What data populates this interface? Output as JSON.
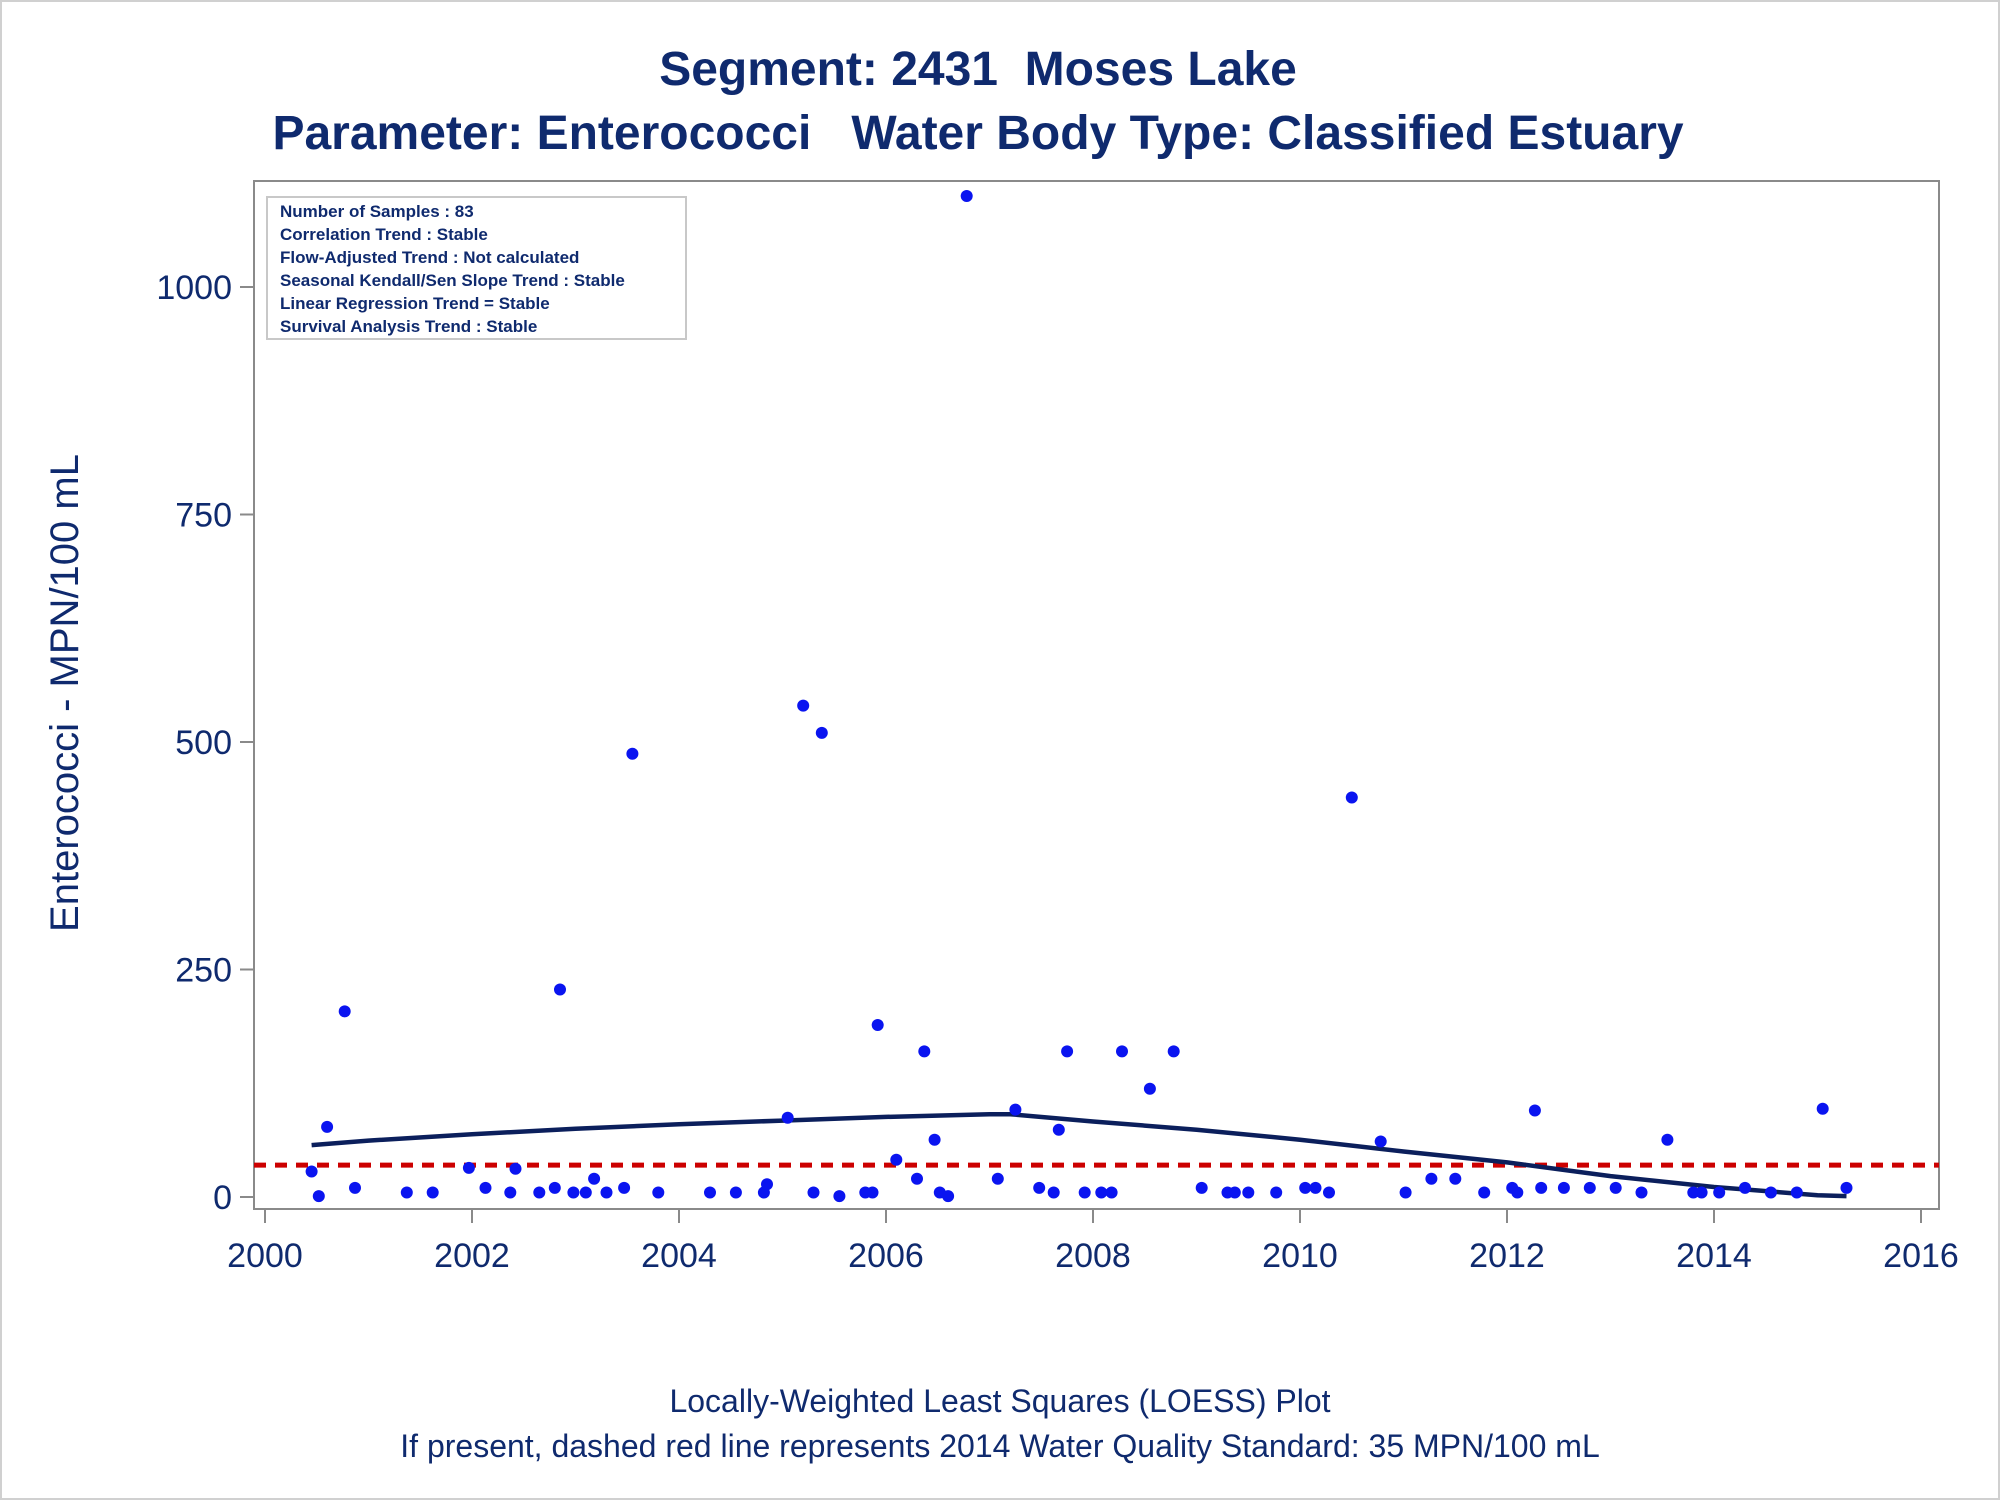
{
  "title": "Segment: 2431  Moses Lake",
  "subtitle": "Parameter: Enterococci   Water Body Type: Classified Estuary",
  "footer": {
    "line1": "Locally-Weighted Least Squares (LOESS) Plot",
    "line2": "If present, dashed red line represents 2014 Water Quality Standard: 35 MPN/100 mL"
  },
  "annotations": [
    "Number of Samples : 83",
    "Correlation Trend : Stable",
    "Flow-Adjusted Trend : Not calculated",
    "Seasonal Kendall/Sen Slope Trend : Stable",
    "Linear Regression Trend = Stable",
    "Survival Analysis Trend : Stable"
  ],
  "colors": {
    "text": "#0f2a6e",
    "points": "#0a14f0",
    "loess": "#0b1f5c",
    "standard": "#cc0000",
    "axis": "#8a8a8a"
  },
  "chart_data": {
    "type": "scatter",
    "title": "Segment: 2431  Moses Lake",
    "subtitle": "Parameter: Enterococci   Water Body Type: Classified Estuary",
    "xlabel": "",
    "ylabel": "Enterococci - MPN/100 mL",
    "xlim": [
      2000,
      2016
    ],
    "ylim": [
      -13,
      1110
    ],
    "xticks": [
      2000,
      2002,
      2004,
      2006,
      2008,
      2010,
      2012,
      2014,
      2016
    ],
    "yticks": [
      0,
      250,
      500,
      750,
      1000
    ],
    "standard_line": {
      "y": 35,
      "style": "dashed",
      "color": "#cc0000"
    },
    "series": [
      {
        "type": "scatter",
        "x": [
          2000.45,
          2000.52,
          2000.6,
          2000.77,
          2000.87,
          2001.37,
          2001.62,
          2001.97,
          2002.13,
          2002.37,
          2002.42,
          2002.65,
          2002.8,
          2002.85,
          2002.98,
          2003.1,
          2003.18,
          2003.3,
          2003.47,
          2003.55,
          2003.8,
          2004.3,
          2004.55,
          2004.82,
          2004.85,
          2005.05,
          2005.2,
          2005.3,
          2005.38,
          2005.55,
          2005.8,
          2005.87,
          2005.92,
          2006.1,
          2006.3,
          2006.37,
          2006.47,
          2006.52,
          2006.6,
          2006.78,
          2007.08,
          2007.25,
          2007.48,
          2007.62,
          2007.67,
          2007.75,
          2007.92,
          2008.08,
          2008.18,
          2008.28,
          2008.55,
          2008.78,
          2009.05,
          2009.3,
          2009.37,
          2009.5,
          2009.77,
          2010.05,
          2010.15,
          2010.28,
          2010.5,
          2010.78,
          2011.02,
          2011.27,
          2011.5,
          2011.78,
          2012.05,
          2012.1,
          2012.27,
          2012.33,
          2012.55,
          2012.8,
          2013.05,
          2013.3,
          2013.55,
          2013.8,
          2013.88,
          2014.05,
          2014.3,
          2014.55,
          2014.8,
          2015.05,
          2015.28
        ],
        "y": [
          28,
          1,
          77,
          204,
          10,
          5,
          5,
          32,
          10,
          5,
          31,
          5,
          10,
          228,
          5,
          5,
          20,
          5,
          10,
          487,
          5,
          5,
          5,
          5,
          14,
          87,
          540,
          5,
          510,
          1,
          5,
          5,
          189,
          41,
          20,
          160,
          63,
          5,
          1,
          1100,
          20,
          96,
          10,
          5,
          74,
          160,
          5,
          5,
          5,
          160,
          119,
          160,
          10,
          5,
          5,
          5,
          5,
          10,
          10,
          5,
          439,
          61,
          5,
          20,
          20,
          5,
          10,
          5,
          95,
          10,
          10,
          10,
          10,
          5,
          63,
          5,
          5,
          5,
          10,
          5,
          5,
          97,
          10
        ]
      },
      {
        "type": "line",
        "name": "LOESS",
        "x": [
          2000.45,
          2001,
          2002,
          2003,
          2004,
          2005,
          2006,
          2007,
          2007.2,
          2008,
          2009,
          2010,
          2011,
          2012,
          2013,
          2014,
          2015,
          2015.28
        ],
        "y": [
          57,
          62,
          69,
          75,
          80,
          84,
          88,
          91,
          91,
          83,
          74,
          63,
          50,
          38,
          23,
          11,
          2,
          1
        ]
      }
    ]
  }
}
